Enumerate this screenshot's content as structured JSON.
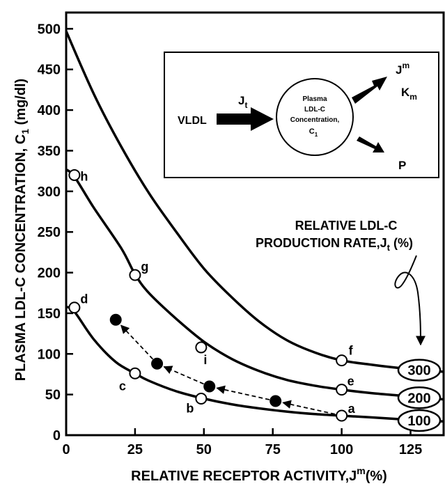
{
  "chart_data": {
    "type": "line",
    "ylabel": "PLASMA LDL-C CONCENTRATION, C",
    "ylabel_sub": "1",
    "ylabel_unit": " (mg/dl)",
    "xlabel": "RELATIVE RECEPTOR ACTIVITY,J",
    "xlabel_sup": "m",
    "xlabel_unit": "(%)",
    "xlim": [
      0,
      137
    ],
    "ylim": [
      0,
      520
    ],
    "xticks": [
      0,
      25,
      50,
      75,
      100,
      125
    ],
    "yticks": [
      0,
      50,
      100,
      150,
      200,
      250,
      300,
      350,
      400,
      450,
      500
    ],
    "series": [
      {
        "name": "300",
        "x": [
          0,
          10,
          20,
          30,
          40,
          50,
          60,
          70,
          80,
          90,
          100,
          110,
          120,
          130,
          137
        ],
        "values": [
          497,
          420,
          355,
          298,
          250,
          205,
          170,
          140,
          117,
          102,
          92,
          87,
          83,
          80,
          78
        ]
      },
      {
        "name": "200",
        "x": [
          0,
          3,
          10,
          20,
          25,
          30,
          40,
          50,
          60,
          70,
          80,
          90,
          100,
          110,
          120,
          130,
          137
        ],
        "values": [
          327,
          318,
          280,
          230,
          198,
          175,
          143,
          115,
          94,
          79,
          68,
          61,
          56,
          52,
          49,
          46,
          44
        ]
      },
      {
        "name": "100",
        "x": [
          0,
          3,
          10,
          18,
          25,
          30,
          40,
          50,
          60,
          70,
          80,
          90,
          100,
          110,
          120,
          130,
          137
        ],
        "values": [
          158,
          152,
          118,
          90,
          76,
          67,
          54,
          45,
          38,
          33,
          29,
          26,
          24,
          22,
          20,
          18,
          17
        ]
      }
    ],
    "open_points": [
      {
        "label": "a",
        "x": 100,
        "y": 24
      },
      {
        "label": "b",
        "x": 49,
        "y": 45
      },
      {
        "label": "c",
        "x": 25,
        "y": 76
      },
      {
        "label": "d",
        "x": 3,
        "y": 157
      },
      {
        "label": "e",
        "x": 100,
        "y": 56
      },
      {
        "label": "f",
        "x": 100,
        "y": 92
      },
      {
        "label": "g",
        "x": 25,
        "y": 197
      },
      {
        "label": "h",
        "x": 3,
        "y": 320
      },
      {
        "label": "i",
        "x": 49,
        "y": 108
      }
    ],
    "filled_points": [
      {
        "x": 18,
        "y": 142
      },
      {
        "x": 33,
        "y": 88
      },
      {
        "x": 52,
        "y": 60
      },
      {
        "x": 76,
        "y": 42
      }
    ],
    "dashed_path": [
      [
        100,
        24
      ],
      [
        76,
        42
      ],
      [
        52,
        60
      ],
      [
        33,
        88
      ],
      [
        18,
        142
      ]
    ],
    "rate_labels": [
      {
        "text": "300",
        "y": 80
      },
      {
        "text": "200",
        "y": 46
      },
      {
        "text": "100",
        "y": 18
      }
    ],
    "rate_title_line1": "RELATIVE LDL-C",
    "rate_title_line2": "PRODUCTION RATE,J",
    "rate_title_sub": "t",
    "rate_title_unit": " (%)",
    "inset": {
      "vldl": "VLDL",
      "jt": "J",
      "jt_sub": "t",
      "circle_line1": "Plasma",
      "circle_line2": "LDL-C",
      "circle_line3": "Concentration,",
      "circle_line4": "C",
      "circle_line4_sub": "1",
      "jm": "J",
      "jm_sup": "m",
      "km": "K",
      "km_sub": "m",
      "p": "P"
    }
  }
}
